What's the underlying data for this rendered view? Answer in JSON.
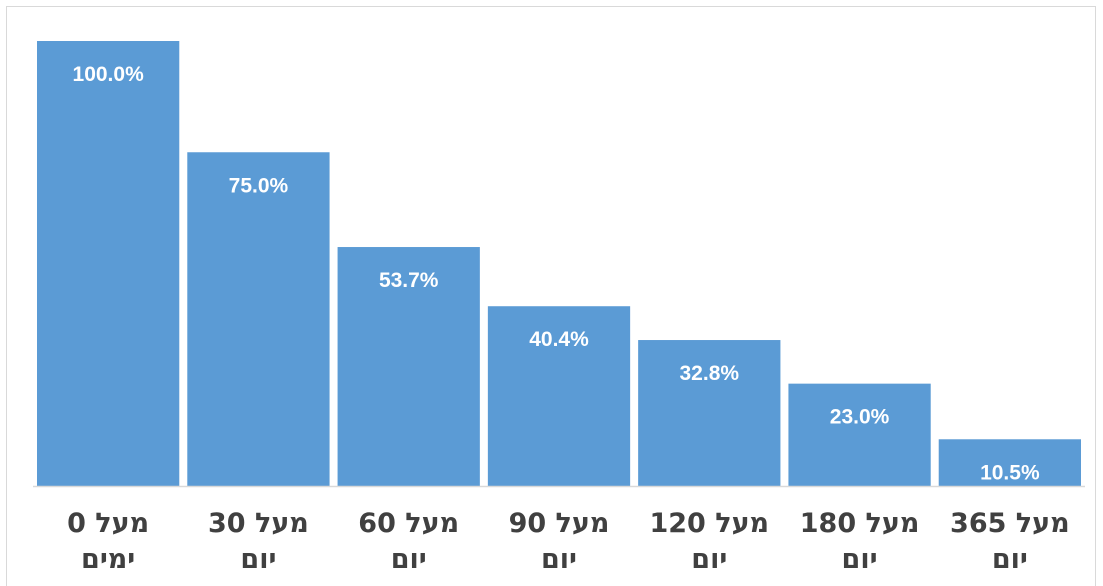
{
  "chart_data": {
    "type": "bar",
    "categories": [
      [
        "מעל 0",
        "ימים"
      ],
      [
        "מעל 30",
        "יום"
      ],
      [
        "מעל 60",
        "יום"
      ],
      [
        "מעל 90",
        "יום"
      ],
      [
        "מעל 120",
        "יום"
      ],
      [
        "מעל 180",
        "יום"
      ],
      [
        "מעל 365",
        "יום"
      ]
    ],
    "values": [
      100.0,
      75.0,
      53.7,
      40.4,
      32.8,
      23.0,
      10.5
    ],
    "data_labels": [
      "100.0%",
      "75.0%",
      "53.7%",
      "40.4%",
      "32.8%",
      "23.0%",
      "10.5%"
    ],
    "title": "",
    "xlabel": "",
    "ylabel": "",
    "ylim": [
      0,
      100
    ],
    "grid": false,
    "legend": "none",
    "colors": {
      "bar": "#5b9bd5",
      "axis": "#d9d9d9",
      "category_text": "#404040",
      "label_text": "#ffffff"
    }
  }
}
